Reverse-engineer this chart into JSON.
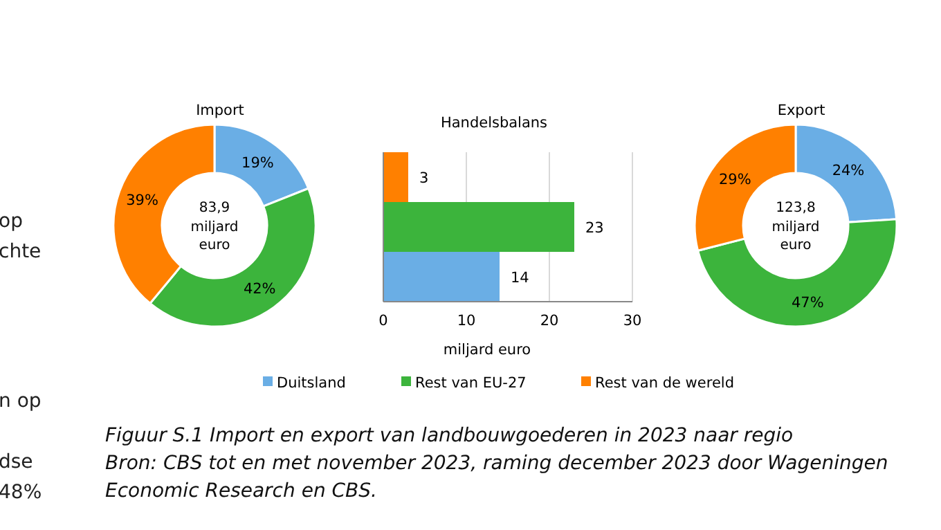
{
  "chart_data": [
    {
      "type": "donut",
      "title": "Import",
      "categories": [
        null,
        null,
        null
      ],
      "values": [
        19,
        42,
        39
      ],
      "colors": [
        "#6aaee5",
        "#3cb43c",
        "#ff8000"
      ],
      "value_labels": [
        "19%",
        "42%",
        "39%"
      ],
      "annotations": [
        "83,9 miljard euro"
      ],
      "legend": false
    },
    {
      "type": "bar",
      "orientation": "horizontal",
      "title": "Handelsbalans",
      "xlabel": "miljard euro",
      "categories": [
        null,
        null,
        null
      ],
      "series": [
        {
          "name": "Duitsland",
          "color": "#6aaee5",
          "values": [
            null,
            null,
            14
          ]
        },
        {
          "name": "Rest van EU-27",
          "color": "#3cb43c",
          "values": [
            null,
            23,
            null
          ]
        },
        {
          "name": "Rest van de wereld",
          "color": "#ff8000",
          "values": [
            3,
            null,
            null
          ]
        }
      ],
      "xlim": [
        0,
        30
      ],
      "xticks": [
        0,
        10,
        20,
        30
      ],
      "grid": "x",
      "data_labels": true,
      "legend": "bottom",
      "annotations": [
        "Figuur S.1   Import en export van landbouwgoederen in 2023 naar regio",
        "Bron: CBS tot en met november 2023, raming december 2023 door Wageningen Economic Research en CBS."
      ]
    },
    {
      "type": "donut",
      "title": "Export",
      "categories": [
        null,
        null,
        null
      ],
      "values": [
        24,
        47,
        29
      ],
      "colors": [
        "#6aaee5",
        "#3cb43c",
        "#ff8000"
      ],
      "value_labels": [
        "24%",
        "47%",
        "29%"
      ],
      "annotations": [
        "123,8 miljard euro"
      ],
      "legend": false
    },
    {
      "type": "other",
      "annotations": [
        "op",
        "chte",
        "n op",
        "dse",
        "48%"
      ]
    }
  ]
}
